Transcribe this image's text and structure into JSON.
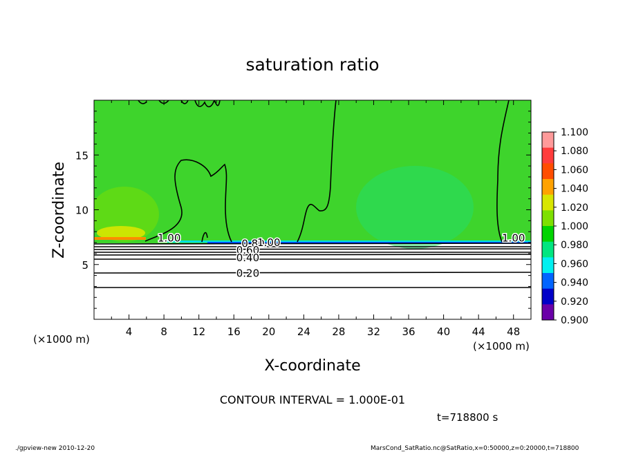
{
  "chart_data": {
    "type": "heatmap",
    "title": "saturation ratio",
    "xlabel": "X-coordinate",
    "ylabel": "Z-coordinate",
    "x_unit": "(×1000 m)",
    "y_unit": "(×1000 m)",
    "xlim": [
      0,
      50
    ],
    "ylim": [
      0,
      20
    ],
    "x_ticks": [
      "4",
      "8",
      "12",
      "16",
      "20",
      "24",
      "28",
      "32",
      "36",
      "40",
      "44",
      "48"
    ],
    "y_ticks": [
      "5",
      "10",
      "15"
    ],
    "contour_interval_text": "CONTOUR INTERVAL = 1.000E-01",
    "time_text": "t=718800 s",
    "contour_labels": [
      {
        "text": "1.00",
        "x": 8.6,
        "z": 7.4
      },
      {
        "text": "0.80",
        "x": 18.2,
        "z": 6.9
      },
      {
        "text": "0.60",
        "x": 17.6,
        "z": 6.3
      },
      {
        "text": "0.40",
        "x": 17.6,
        "z": 5.6
      },
      {
        "text": "0.20",
        "x": 17.6,
        "z": 4.2
      },
      {
        "text": "1.00",
        "x": 48.0,
        "z": 7.4
      },
      {
        "text": "1.00",
        "x": 20.0,
        "z": 7.0
      }
    ],
    "colorbar": {
      "labels": [
        "1.100",
        "1.080",
        "1.060",
        "1.040",
        "1.020",
        "1.000",
        "0.980",
        "0.960",
        "0.940",
        "0.920",
        "0.900"
      ],
      "colors": [
        "#ff9a9a",
        "#ff3c3c",
        "#ff4d00",
        "#ffa200",
        "#d8e600",
        "#7ee000",
        "#00d400",
        "#00e680",
        "#00f0f0",
        "#0064ff",
        "#0000c8",
        "#6a00a8"
      ]
    }
  },
  "footer": {
    "left": "./gpview-new   2010-12-20",
    "right": "MarsCond_SatRatio.nc@SatRatio,x=0:50000,z=0:20000,t=718800"
  }
}
